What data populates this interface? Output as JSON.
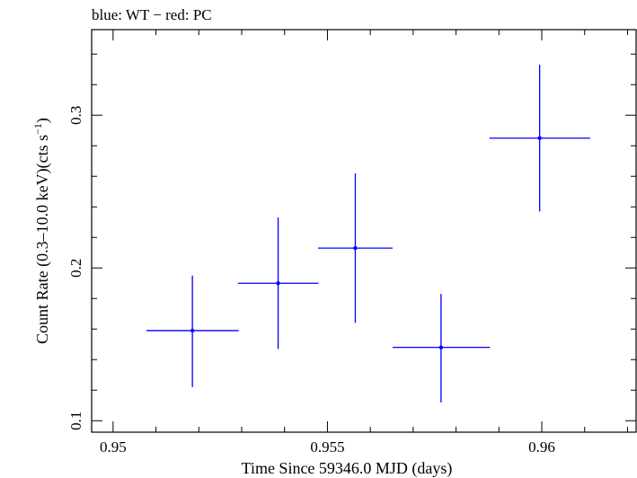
{
  "chart_data": {
    "type": "scatter",
    "title": "blue: WT − red: PC",
    "xlabel": "Time Since 59346.0 MJD (days)",
    "ylabel_main": "Count Rate (0.3–10.0 keV)(cts s",
    "ylabel_sup": "−1",
    "ylabel_close": ")",
    "xlim": [
      0.9495,
      0.9622
    ],
    "ylim": [
      0.0925,
      0.356
    ],
    "x_ticks": [
      {
        "value": 0.95,
        "label": "0.95"
      },
      {
        "value": 0.955,
        "label": "0.955"
      },
      {
        "value": 0.96,
        "label": "0.96"
      }
    ],
    "y_ticks": [
      {
        "value": 0.1,
        "label": "0.1"
      },
      {
        "value": 0.2,
        "label": "0.2"
      },
      {
        "value": 0.3,
        "label": "0.3"
      }
    ],
    "series": [
      {
        "name": "WT",
        "color": "#0000ff",
        "points": [
          {
            "x": 0.95185,
            "xerr_lo": 0.00107,
            "xerr_hi": 0.00108,
            "y": 0.159,
            "yerr_lo": 0.037,
            "yerr_hi": 0.036
          },
          {
            "x": 0.95385,
            "xerr_lo": 0.00094,
            "xerr_hi": 0.00094,
            "y": 0.19,
            "yerr_lo": 0.043,
            "yerr_hi": 0.043
          },
          {
            "x": 0.95565,
            "xerr_lo": 0.00087,
            "xerr_hi": 0.00087,
            "y": 0.213,
            "yerr_lo": 0.049,
            "yerr_hi": 0.049
          },
          {
            "x": 0.95765,
            "xerr_lo": 0.00113,
            "xerr_hi": 0.00114,
            "y": 0.148,
            "yerr_lo": 0.036,
            "yerr_hi": 0.035
          },
          {
            "x": 0.95995,
            "xerr_lo": 0.00117,
            "xerr_hi": 0.00118,
            "y": 0.285,
            "yerr_lo": 0.048,
            "yerr_hi": 0.048
          }
        ]
      }
    ]
  }
}
